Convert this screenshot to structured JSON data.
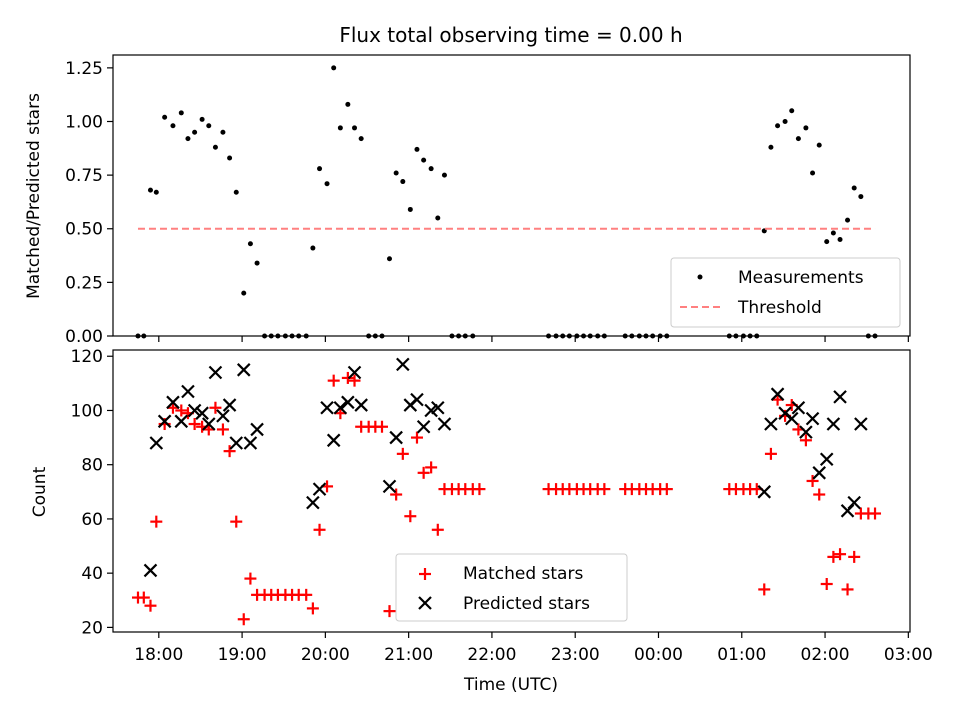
{
  "title": "Flux total observing time = 0.00 h",
  "xlabel": "Time (UTC)",
  "x_ticks": [
    "18:00",
    "19:00",
    "20:00",
    "21:00",
    "22:00",
    "23:00",
    "00:00",
    "01:00",
    "02:00",
    "03:00"
  ],
  "chart_data": [
    {
      "type": "scatter",
      "ylabel": "Matched/Predicted stars",
      "ylim": [
        0,
        1.31
      ],
      "xlim_hours": [
        17.45,
        27.02
      ],
      "y_ticks": [
        "0.00",
        "0.25",
        "0.50",
        "0.75",
        "1.00",
        "1.25"
      ],
      "legend_placement": "lower-right",
      "colors": {
        "measurements": "#000000",
        "threshold": "#ff8080"
      },
      "series": [
        {
          "name": "Measurements",
          "points": [
            [
              17.75,
              0
            ],
            [
              17.82,
              0
            ],
            [
              17.9,
              0.68
            ],
            [
              17.97,
              0.67
            ],
            [
              18.07,
              1.02
            ],
            [
              18.17,
              0.98
            ],
            [
              18.27,
              1.04
            ],
            [
              18.35,
              0.92
            ],
            [
              18.43,
              0.95
            ],
            [
              18.52,
              1.01
            ],
            [
              18.6,
              0.98
            ],
            [
              18.68,
              0.88
            ],
            [
              18.77,
              0.95
            ],
            [
              18.85,
              0.83
            ],
            [
              18.93,
              0.67
            ],
            [
              19.02,
              0.2
            ],
            [
              19.1,
              0.43
            ],
            [
              19.18,
              0.34
            ],
            [
              19.27,
              0
            ],
            [
              19.35,
              0
            ],
            [
              19.43,
              0
            ],
            [
              19.52,
              0
            ],
            [
              19.6,
              0
            ],
            [
              19.68,
              0
            ],
            [
              19.77,
              0
            ],
            [
              19.85,
              0.41
            ],
            [
              19.93,
              0.78
            ],
            [
              20.02,
              0.71
            ],
            [
              20.1,
              1.25
            ],
            [
              20.18,
              0.97
            ],
            [
              20.27,
              1.08
            ],
            [
              20.35,
              0.97
            ],
            [
              20.43,
              0.92
            ],
            [
              20.52,
              0
            ],
            [
              20.6,
              0
            ],
            [
              20.68,
              0
            ],
            [
              20.77,
              0.36
            ],
            [
              20.85,
              0.76
            ],
            [
              20.93,
              0.72
            ],
            [
              21.02,
              0.59
            ],
            [
              21.1,
              0.87
            ],
            [
              21.18,
              0.82
            ],
            [
              21.27,
              0.78
            ],
            [
              21.35,
              0.55
            ],
            [
              21.43,
              0.75
            ],
            [
              21.52,
              0
            ],
            [
              21.6,
              0
            ],
            [
              21.68,
              0
            ],
            [
              21.77,
              0
            ],
            [
              22.68,
              0
            ],
            [
              22.77,
              0
            ],
            [
              22.85,
              0
            ],
            [
              22.93,
              0
            ],
            [
              23.02,
              0
            ],
            [
              23.1,
              0
            ],
            [
              23.18,
              0
            ],
            [
              23.27,
              0
            ],
            [
              23.35,
              0
            ],
            [
              23.6,
              0
            ],
            [
              23.68,
              0
            ],
            [
              23.77,
              0
            ],
            [
              23.85,
              0
            ],
            [
              23.93,
              0
            ],
            [
              24.02,
              0
            ],
            [
              24.1,
              0
            ],
            [
              24.85,
              0
            ],
            [
              24.93,
              0
            ],
            [
              25.02,
              0
            ],
            [
              25.1,
              0
            ],
            [
              25.18,
              0
            ],
            [
              25.27,
              0.49
            ],
            [
              25.35,
              0.88
            ],
            [
              25.43,
              0.98
            ],
            [
              25.52,
              1.0
            ],
            [
              25.6,
              1.05
            ],
            [
              25.68,
              0.92
            ],
            [
              25.77,
              0.97
            ],
            [
              25.85,
              0.76
            ],
            [
              25.93,
              0.89
            ],
            [
              26.02,
              0.44
            ],
            [
              26.1,
              0.48
            ],
            [
              26.18,
              0.45
            ],
            [
              26.27,
              0.54
            ],
            [
              26.35,
              0.69
            ],
            [
              26.43,
              0.65
            ],
            [
              26.52,
              0
            ],
            [
              26.6,
              0
            ]
          ]
        },
        {
          "name": "Threshold",
          "style": "dashed",
          "points": [
            [
              17.75,
              0.5
            ],
            [
              26.6,
              0.5
            ]
          ]
        }
      ]
    },
    {
      "type": "scatter",
      "ylabel": "Count",
      "ylim": [
        18.3,
        122.3
      ],
      "xlim_hours": [
        17.45,
        27.02
      ],
      "y_ticks": [
        "20",
        "40",
        "60",
        "80",
        "100",
        "120"
      ],
      "legend_placement": "lower-center",
      "colors": {
        "matched": "#ff0000",
        "predicted": "#000000"
      },
      "series": [
        {
          "name": "Matched stars",
          "marker": "+",
          "points": [
            [
              17.75,
              31
            ],
            [
              17.82,
              31
            ],
            [
              17.9,
              28
            ],
            [
              17.97,
              59
            ],
            [
              18.07,
              95
            ],
            [
              18.17,
              101
            ],
            [
              18.27,
              100
            ],
            [
              18.35,
              99
            ],
            [
              18.43,
              95
            ],
            [
              18.52,
              94
            ],
            [
              18.6,
              93
            ],
            [
              18.68,
              101
            ],
            [
              18.77,
              93
            ],
            [
              18.85,
              85
            ],
            [
              18.93,
              59
            ],
            [
              19.02,
              23
            ],
            [
              19.1,
              38
            ],
            [
              19.18,
              32
            ],
            [
              19.27,
              32
            ],
            [
              19.35,
              32
            ],
            [
              19.43,
              32
            ],
            [
              19.52,
              32
            ],
            [
              19.6,
              32
            ],
            [
              19.68,
              32
            ],
            [
              19.77,
              32
            ],
            [
              19.85,
              27
            ],
            [
              19.93,
              56
            ],
            [
              20.02,
              72
            ],
            [
              20.1,
              111
            ],
            [
              20.18,
              99
            ],
            [
              20.27,
              112
            ],
            [
              20.35,
              111
            ],
            [
              20.43,
              94
            ],
            [
              20.52,
              94
            ],
            [
              20.6,
              94
            ],
            [
              20.68,
              94
            ],
            [
              20.77,
              26
            ],
            [
              20.85,
              69
            ],
            [
              20.93,
              84
            ],
            [
              21.02,
              61
            ],
            [
              21.1,
              90
            ],
            [
              21.18,
              77
            ],
            [
              21.27,
              79
            ],
            [
              21.35,
              56
            ],
            [
              21.43,
              71
            ],
            [
              21.52,
              71
            ],
            [
              21.6,
              71
            ],
            [
              21.68,
              71
            ],
            [
              21.77,
              71
            ],
            [
              21.85,
              71
            ],
            [
              22.68,
              71
            ],
            [
              22.77,
              71
            ],
            [
              22.85,
              71
            ],
            [
              22.93,
              71
            ],
            [
              23.02,
              71
            ],
            [
              23.1,
              71
            ],
            [
              23.18,
              71
            ],
            [
              23.27,
              71
            ],
            [
              23.35,
              71
            ],
            [
              23.6,
              71
            ],
            [
              23.68,
              71
            ],
            [
              23.77,
              71
            ],
            [
              23.85,
              71
            ],
            [
              23.93,
              71
            ],
            [
              24.02,
              71
            ],
            [
              24.1,
              71
            ],
            [
              24.85,
              71
            ],
            [
              24.93,
              71
            ],
            [
              25.02,
              71
            ],
            [
              25.1,
              71
            ],
            [
              25.18,
              71
            ],
            [
              25.27,
              34
            ],
            [
              25.35,
              84
            ],
            [
              25.43,
              104
            ],
            [
              25.52,
              98
            ],
            [
              25.6,
              102
            ],
            [
              25.68,
              93
            ],
            [
              25.77,
              89
            ],
            [
              25.85,
              74
            ],
            [
              25.93,
              69
            ],
            [
              26.02,
              36
            ],
            [
              26.1,
              46
            ],
            [
              26.18,
              47
            ],
            [
              26.27,
              34
            ],
            [
              26.35,
              46
            ],
            [
              26.43,
              62
            ],
            [
              26.52,
              62
            ],
            [
              26.6,
              62
            ]
          ]
        },
        {
          "name": "Predicted stars",
          "marker": "x",
          "points": [
            [
              17.9,
              41
            ],
            [
              17.97,
              88
            ],
            [
              18.07,
              96
            ],
            [
              18.17,
              103
            ],
            [
              18.27,
              96
            ],
            [
              18.35,
              107
            ],
            [
              18.43,
              100
            ],
            [
              18.52,
              99
            ],
            [
              18.6,
              95
            ],
            [
              18.68,
              114
            ],
            [
              18.77,
              98
            ],
            [
              18.85,
              102
            ],
            [
              18.93,
              88
            ],
            [
              19.02,
              115
            ],
            [
              19.1,
              88
            ],
            [
              19.18,
              93
            ],
            [
              19.85,
              66
            ],
            [
              19.93,
              71
            ],
            [
              20.02,
              101
            ],
            [
              20.1,
              89
            ],
            [
              20.18,
              101
            ],
            [
              20.27,
              103
            ],
            [
              20.35,
              114
            ],
            [
              20.43,
              102
            ],
            [
              20.77,
              72
            ],
            [
              20.85,
              90
            ],
            [
              20.93,
              117
            ],
            [
              21.02,
              102
            ],
            [
              21.1,
              104
            ],
            [
              21.18,
              94
            ],
            [
              21.27,
              100
            ],
            [
              21.35,
              101
            ],
            [
              21.43,
              95
            ],
            [
              25.27,
              70
            ],
            [
              25.35,
              95
            ],
            [
              25.43,
              106
            ],
            [
              25.52,
              99
            ],
            [
              25.6,
              97
            ],
            [
              25.68,
              101
            ],
            [
              25.77,
              92
            ],
            [
              25.85,
              97
            ],
            [
              25.93,
              77
            ],
            [
              26.02,
              82
            ],
            [
              26.1,
              95
            ],
            [
              26.18,
              105
            ],
            [
              26.27,
              63
            ],
            [
              26.35,
              66
            ],
            [
              26.43,
              95
            ]
          ]
        }
      ]
    }
  ]
}
